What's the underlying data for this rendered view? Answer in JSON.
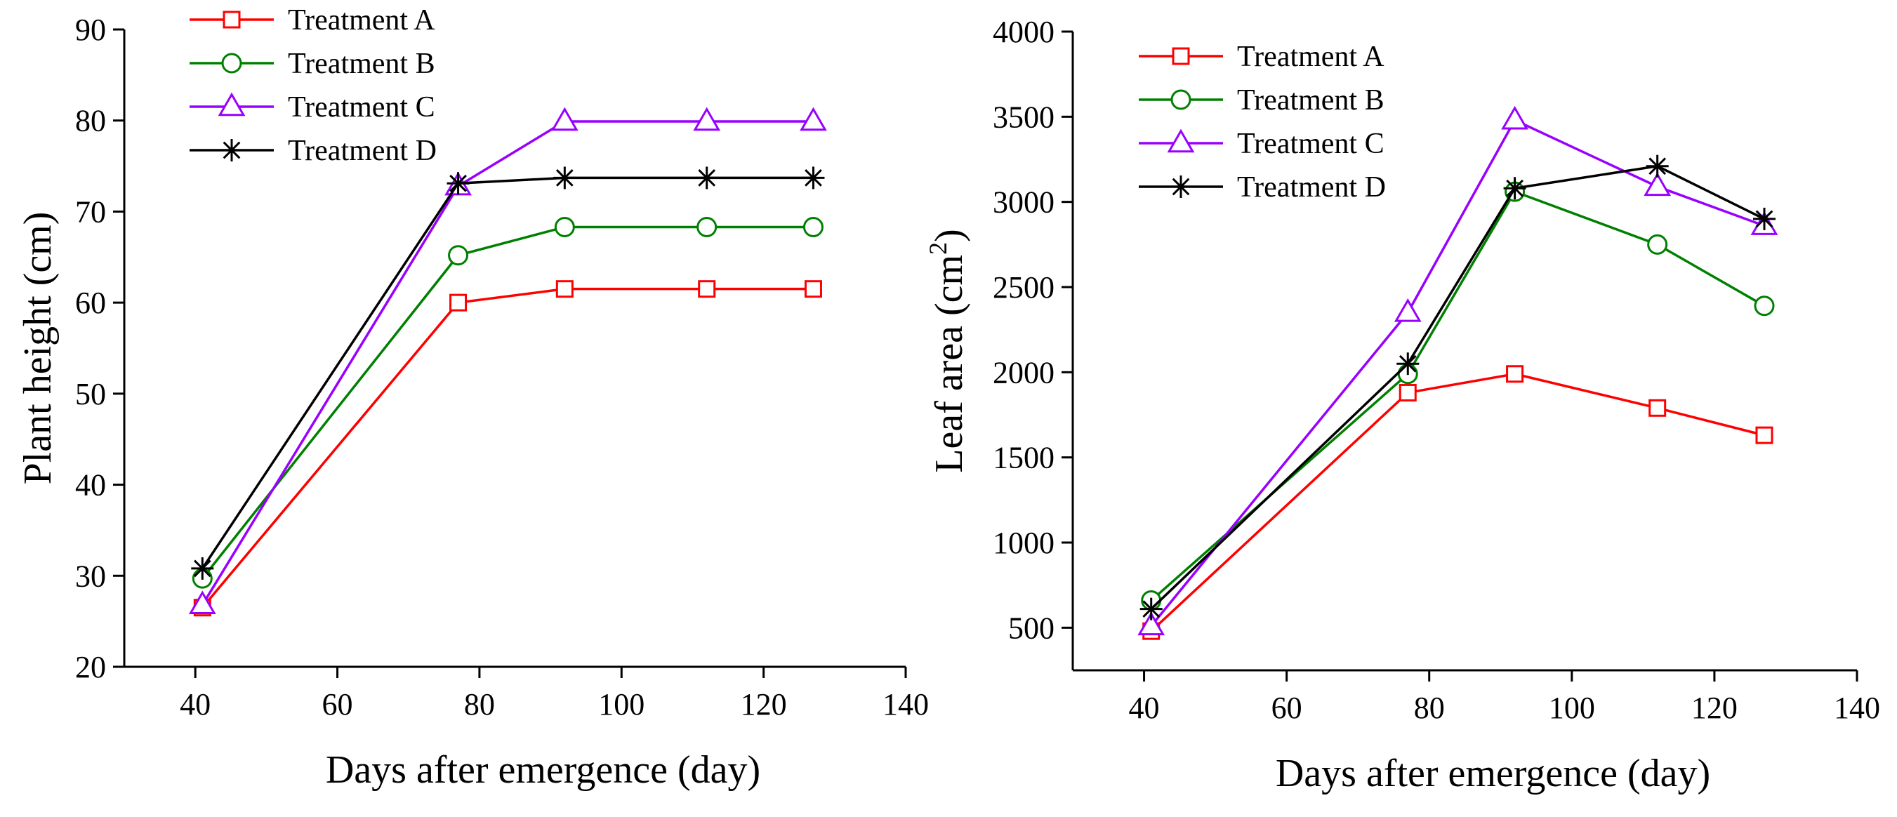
{
  "chart_data": [
    {
      "type": "line",
      "xlabel": "Days after emergence (day)",
      "ylabel": "Plant height (cm)",
      "xlim": [
        30,
        140
      ],
      "ylim": [
        20,
        90
      ],
      "xticks": [
        40,
        60,
        80,
        100,
        120,
        140
      ],
      "yticks": [
        20,
        30,
        40,
        50,
        60,
        70,
        80,
        90
      ],
      "x": [
        41,
        77,
        92,
        112,
        127
      ],
      "series": [
        {
          "name": "Treatment A",
          "marker": "square",
          "color": "#ff0000",
          "values": [
            26.5,
            60,
            61.5,
            61.5,
            61.5
          ]
        },
        {
          "name": "Treatment B",
          "marker": "circle",
          "color": "#008000",
          "values": [
            29.7,
            65.2,
            68.3,
            68.3,
            68.3
          ]
        },
        {
          "name": "Treatment C",
          "marker": "triangle",
          "color": "#9900ff",
          "values": [
            26.8,
            72.8,
            79.9,
            79.9,
            79.9
          ]
        },
        {
          "name": "Treatment D",
          "marker": "star",
          "color": "#000000",
          "values": [
            30.8,
            73.1,
            73.7,
            73.7,
            73.7
          ]
        }
      ]
    },
    {
      "type": "line",
      "xlabel": "Days after emergence (day)",
      "ylabel": "Leaf area (cm",
      "ylabel_sup": "2",
      "ylabel_end": ")",
      "xlim": [
        30,
        140
      ],
      "ylim": [
        250,
        4000
      ],
      "xticks": [
        40,
        60,
        80,
        100,
        120,
        140
      ],
      "yticks": [
        500,
        1000,
        1500,
        2000,
        2500,
        3000,
        3500,
        4000
      ],
      "x": [
        41,
        77,
        92,
        112,
        127
      ],
      "series": [
        {
          "name": "Treatment A",
          "marker": "square",
          "color": "#ff0000",
          "values": [
            480,
            1880,
            1990,
            1790,
            1630
          ]
        },
        {
          "name": "Treatment B",
          "marker": "circle",
          "color": "#008000",
          "values": [
            660,
            1990,
            3060,
            2750,
            2390
          ]
        },
        {
          "name": "Treatment C",
          "marker": "triangle",
          "color": "#9900ff",
          "values": [
            510,
            2350,
            3480,
            3090,
            2860
          ]
        },
        {
          "name": "Treatment D",
          "marker": "star",
          "color": "#000000",
          "values": [
            610,
            2050,
            3080,
            3210,
            2900
          ]
        }
      ]
    }
  ]
}
